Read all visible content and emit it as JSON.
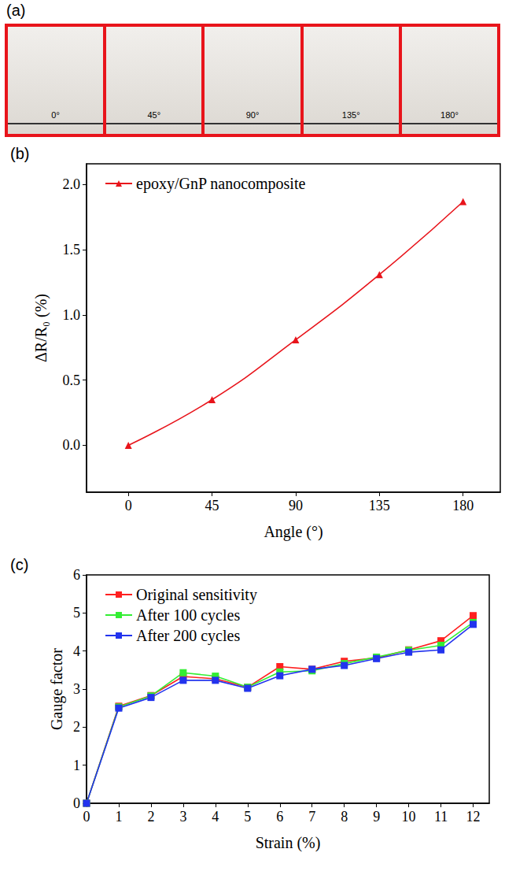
{
  "photos": {
    "panel": "(a)",
    "labels": [
      "0°",
      "45°",
      "90°",
      "135°",
      "180°"
    ]
  },
  "chart_data": [
    {
      "type": "line",
      "panel": "(b)",
      "x_label": "Angle (°)",
      "y_label": "ΔR/R₀ (%)",
      "xlim": [
        -22.5,
        200
      ],
      "xticks": [
        0,
        45,
        90,
        135,
        180
      ],
      "ylim": [
        -0.36,
        2.16
      ],
      "yticks": [
        {
          "value": 0,
          "label": "0.0"
        },
        {
          "value": 0.5,
          "label": "0.5"
        },
        {
          "value": 1,
          "label": "1.0"
        },
        {
          "value": 1.5,
          "label": "1.5"
        },
        {
          "value": 2,
          "label": "2.0"
        }
      ],
      "legend": "upper left",
      "grid": false,
      "x": [
        0,
        45,
        90,
        135,
        180
      ],
      "series": [
        {
          "name": "epoxy/GnP nanocomposite",
          "color": "#e8141b",
          "marker": "triangle",
          "line_style": "smooth",
          "values": [
            0,
            0.35,
            0.81,
            1.31,
            1.87
          ]
        }
      ]
    },
    {
      "type": "line",
      "panel": "(c)",
      "x_label": "Strain (%)",
      "y_label": "Gauge factor",
      "xlim": [
        0,
        12.5
      ],
      "xticks": [
        0,
        1,
        2,
        3,
        4,
        5,
        6,
        7,
        8,
        9,
        10,
        11,
        12
      ],
      "ylim": [
        0,
        6
      ],
      "yticks": [
        0,
        1,
        2,
        3,
        4,
        5,
        6
      ],
      "legend": "upper left",
      "grid": false,
      "x": [
        0,
        1,
        2,
        3,
        4,
        5,
        6,
        7,
        8,
        9,
        10,
        11,
        12
      ],
      "series": [
        {
          "name": "Original sensitivity",
          "color": "#ff2020",
          "marker": "square",
          "line_style": "solid",
          "values": [
            0,
            2.55,
            2.83,
            3.33,
            3.27,
            3.05,
            3.59,
            3.52,
            3.73,
            3.82,
            4.03,
            4.27,
            4.93
          ]
        },
        {
          "name": "After 100 cycles",
          "color": "#33ee33",
          "marker": "square",
          "line_style": "solid",
          "values": [
            0,
            2.53,
            2.82,
            3.43,
            3.34,
            3.05,
            3.45,
            3.48,
            3.67,
            3.84,
            4.02,
            4.15,
            4.75
          ]
        },
        {
          "name": "After 200 cycles",
          "color": "#2233ee",
          "marker": "square",
          "line_style": "solid",
          "values": [
            0,
            2.5,
            2.78,
            3.23,
            3.23,
            3.02,
            3.35,
            3.52,
            3.62,
            3.8,
            3.97,
            4.03,
            4.7
          ]
        }
      ]
    }
  ]
}
